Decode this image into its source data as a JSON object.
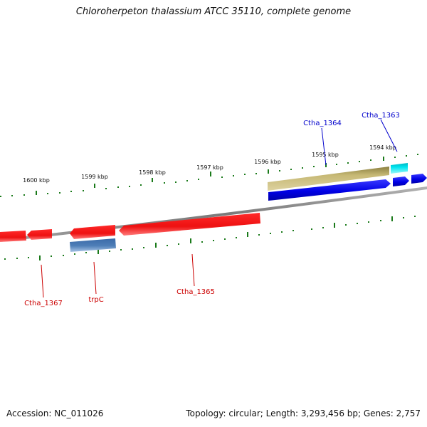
{
  "title": "Chloroherpeton thalassium ATCC 35110, complete genome",
  "footer": {
    "accession": "Accession: NC_011026",
    "summary": "Topology: circular; Length: 3,293,456 bp; Genes: 2,757"
  },
  "scale_labels": [
    "1600 kbp",
    "1599 kbp",
    "1598 kbp",
    "1597 kbp",
    "1596 kbp",
    "1595 kbp",
    "1594 kbp"
  ],
  "gene_labels": {
    "ctha_1364": "Ctha_1364",
    "ctha_1363": "Ctha_1363",
    "ctha_1367": "Ctha_1367",
    "trpc": "trpC",
    "ctha_1365": "Ctha_1365"
  },
  "colors": {
    "forward_gene": "#0000e6",
    "reverse_gene": "#ee1111",
    "olive_gene": "#c6b874",
    "cyan_gene": "#00e5f0",
    "steelblue_gene": "#4f7fb8",
    "tick": "#1a7a1a",
    "backbone": "#8a8a8a",
    "label_forward": "#0000cc",
    "label_reverse": "#cc0000"
  }
}
